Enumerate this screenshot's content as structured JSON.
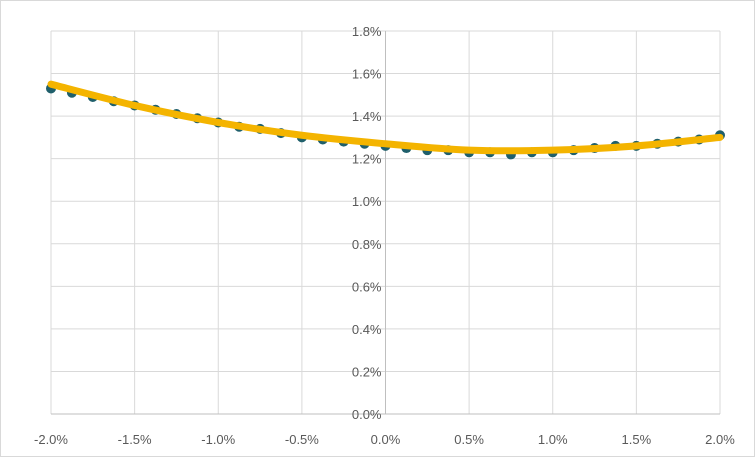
{
  "chart_data": {
    "type": "scatter",
    "title": "",
    "xlabel": "",
    "ylabel": "",
    "xlim": [
      -0.02,
      0.02
    ],
    "ylim": [
      0.0,
      0.018
    ],
    "x_ticks": [
      "-2.0%",
      "-1.5%",
      "-1.0%",
      "-0.5%",
      "0.0%",
      "0.5%",
      "1.0%",
      "1.5%",
      "2.0%"
    ],
    "y_ticks": [
      "0.0%",
      "0.2%",
      "0.4%",
      "0.6%",
      "0.8%",
      "1.0%",
      "1.2%",
      "1.4%",
      "1.6%",
      "1.8%"
    ],
    "grid": true,
    "legend": "none",
    "series": [
      {
        "kind": "points",
        "color": "#1f5f6b",
        "x": [
          -0.02,
          -0.01875,
          -0.0175,
          -0.01625,
          -0.015,
          -0.01375,
          -0.0125,
          -0.01125,
          -0.01,
          -0.00875,
          -0.0075,
          -0.00625,
          -0.005,
          -0.00375,
          -0.0025,
          -0.00125,
          0.0,
          0.00125,
          0.0025,
          0.00375,
          0.005,
          0.00625,
          0.0075,
          0.00875,
          0.01,
          0.01125,
          0.0125,
          0.01375,
          0.015,
          0.01625,
          0.0175,
          0.01875,
          0.02
        ],
        "y": [
          0.0153,
          0.0151,
          0.0149,
          0.0147,
          0.0145,
          0.0143,
          0.0141,
          0.0139,
          0.0137,
          0.0135,
          0.0134,
          0.0132,
          0.013,
          0.0129,
          0.0128,
          0.0127,
          0.0126,
          0.0125,
          0.0124,
          0.0124,
          0.0123,
          0.0123,
          0.0122,
          0.0123,
          0.0123,
          0.0124,
          0.0125,
          0.0126,
          0.0126,
          0.0127,
          0.0128,
          0.0129,
          0.0131
        ]
      },
      {
        "kind": "trendline",
        "color": "#f4b400",
        "x": [
          -0.02,
          -0.015,
          -0.01,
          -0.005,
          0.0,
          0.005,
          0.01,
          0.015,
          0.02
        ],
        "y": [
          0.0155,
          0.0145,
          0.0137,
          0.0131,
          0.0127,
          0.0124,
          0.0124,
          0.0126,
          0.013
        ]
      }
    ]
  }
}
